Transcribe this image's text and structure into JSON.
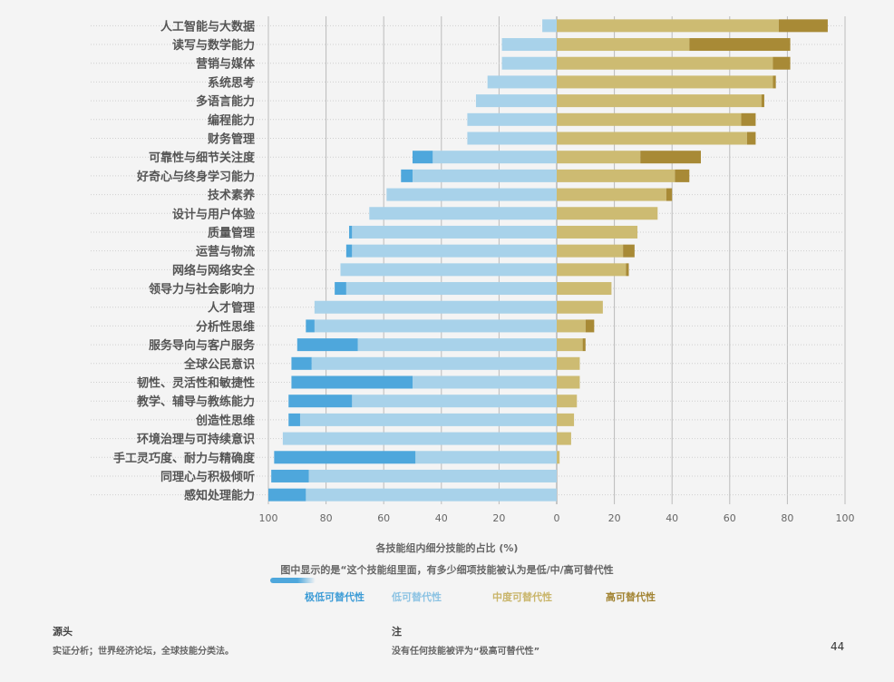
{
  "chart_data": {
    "type": "bar",
    "orientation": "horizontal-diverging",
    "categories": [
      "人工智能与大数据",
      "读写与数学能力",
      "营销与媒体",
      "系统思考",
      "多语言能力",
      "编程能力",
      "财务管理",
      "可靠性与细节关注度",
      "好奇心与终身学习能力",
      "技术素养",
      "设计与用户体验",
      "质量管理",
      "运营与物流",
      "网络与网络安全",
      "领导力与社会影响力",
      "人才管理",
      "分析性思维",
      "服务导向与客户服务",
      "全球公民意识",
      "韧性、灵活性和敏捷性",
      "教学、辅导与教练能力",
      "创造性思维",
      "环境治理与可持续意识",
      "手工灵巧度、耐力与精确度",
      "同理心与积极倾听",
      "感知处理能力"
    ],
    "series": [
      {
        "name": "极低可替代性",
        "side": "left",
        "color": "#4ea7dc",
        "values": [
          0,
          0,
          0,
          0,
          0,
          0,
          0,
          7,
          4,
          0,
          0,
          1,
          2,
          0,
          4,
          0,
          3,
          21,
          7,
          42,
          22,
          4,
          0,
          49,
          13,
          13
        ]
      },
      {
        "name": "低可替代性",
        "side": "left",
        "color": "#a8d2ea",
        "values": [
          5,
          19,
          19,
          24,
          28,
          31,
          31,
          43,
          50,
          59,
          65,
          71,
          71,
          75,
          73,
          84,
          84,
          69,
          85,
          50,
          71,
          89,
          95,
          49,
          86,
          87
        ]
      },
      {
        "name": "中度可替代性",
        "side": "right",
        "color": "#cdbb72",
        "values": [
          77,
          46,
          75,
          75,
          71,
          64,
          66,
          29,
          41,
          38,
          35,
          28,
          23,
          24,
          19,
          16,
          10,
          9,
          8,
          8,
          7,
          6,
          5,
          1,
          0,
          0
        ]
      },
      {
        "name": "高可替代性",
        "side": "right",
        "color": "#a88a36",
        "values": [
          17,
          35,
          6,
          1,
          1,
          5,
          3,
          21,
          5,
          2,
          0,
          0,
          4,
          1,
          0,
          0,
          3,
          1,
          0,
          0,
          0,
          0,
          0,
          0,
          0,
          0
        ]
      }
    ],
    "xlim": [
      -100,
      100
    ],
    "xticks": [
      "100",
      "80",
      "60",
      "40",
      "20",
      "0",
      "20",
      "40",
      "60",
      "80",
      "100"
    ],
    "xlabel": "各技能组内细分技能的占比 (%)",
    "subtitle": "图中显示的是“这个技能组里面，有多少细项技能被认为是低/中/高可替代性",
    "grid": true,
    "legend_position": "bottom"
  },
  "footer": {
    "source_heading": "源头",
    "source_text": "实证分析；世界经济论坛，全球技能分类法。",
    "note_heading": "注",
    "note_text": "没有任何技能被评为“极高可替代性”",
    "page_number": "44"
  }
}
